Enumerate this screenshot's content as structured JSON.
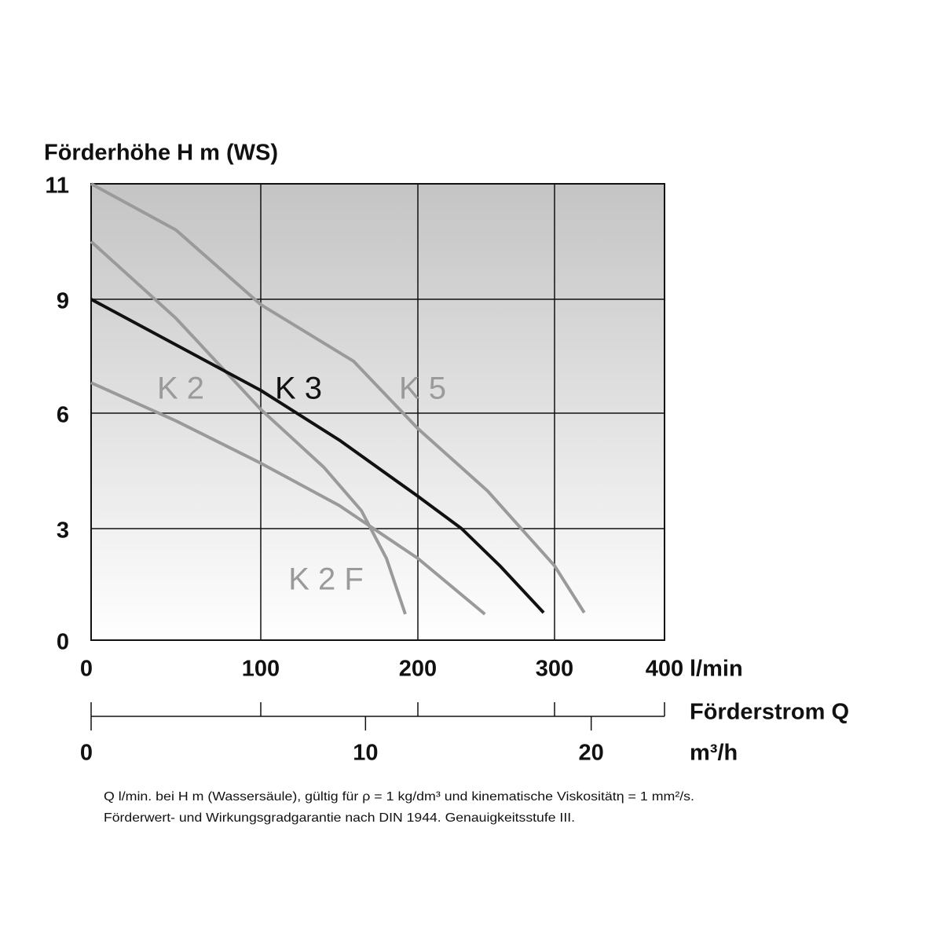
{
  "chart_data": {
    "type": "line",
    "y_label": "Förderhöhe H m (WS)",
    "x_unit": "l/min",
    "x2_label": "Förderstrom Q",
    "x2_unit": "m³/h",
    "xlim": [
      0,
      400
    ],
    "xticks": [
      0,
      100,
      200,
      300,
      400
    ],
    "ylim": [
      0,
      11
    ],
    "yticks": [
      0,
      3,
      6,
      9,
      11
    ],
    "x2lim": [
      0,
      24
    ],
    "x2ticks": [
      0,
      10,
      20
    ],
    "grid": true,
    "series": [
      {
        "name": "K 2",
        "color": "#9a9a9a",
        "x": [
          0,
          50,
          100,
          140,
          164,
          180,
          192
        ],
        "values": [
          10,
          8.5,
          6.1,
          4.6,
          3.47,
          2.2,
          0.7
        ]
      },
      {
        "name": "K 3",
        "color": "#111111",
        "x": [
          0,
          50,
          100,
          150,
          200,
          232,
          260,
          292
        ],
        "values": [
          9,
          7.8,
          6.6,
          5.3,
          3.84,
          3,
          2,
          0.74
        ]
      },
      {
        "name": "K 5",
        "color": "#9a9a9a",
        "x": [
          0,
          50,
          100,
          159,
          200,
          251,
          300,
          327
        ],
        "values": [
          11,
          10.2,
          8.86,
          7.37,
          5.6,
          3.98,
          2,
          0.74
        ]
      },
      {
        "name": "K 2 F",
        "color": "#9a9a9a",
        "x": [
          0,
          50,
          100,
          150,
          200,
          249
        ],
        "values": [
          6.8,
          5.8,
          4.7,
          3.6,
          2.2,
          0.7
        ]
      }
    ],
    "footnotes": [
      "Q l/min. bei H m (Wassersäule), gültig für ρ = 1 kg/dm³ und kinematische Viskositätη = 1 mm²/s.",
      "Förderwert- und Wirkungsgradgarantie nach DIN 1944. Genauigkeitsstufe III."
    ]
  }
}
